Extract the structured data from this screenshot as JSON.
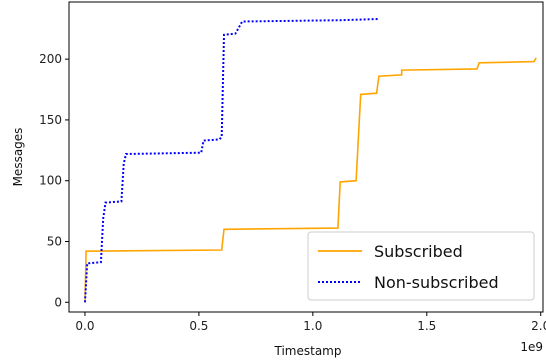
{
  "chart_data": {
    "type": "line",
    "xlabel": "Timestamp",
    "ylabel": "Messages",
    "x_offset_label": "1e9",
    "xlim": [
      -0.07,
      2.01
    ],
    "ylim": [
      -8,
      247
    ],
    "x_ticks": [
      0.0,
      0.5,
      1.0,
      1.5,
      2.0
    ],
    "x_tick_labels": [
      "0.0",
      "0.5",
      "1.0",
      "1.5",
      "2.0"
    ],
    "y_ticks": [
      0,
      50,
      100,
      150,
      200
    ],
    "y_tick_labels": [
      "0",
      "50",
      "100",
      "150",
      "200"
    ],
    "grid": false,
    "legend_position": "lower-right",
    "series": [
      {
        "name": "Subscribed",
        "color": "#ffa500",
        "style": "solid",
        "points": [
          [
            0.0,
            0
          ],
          [
            0.005,
            42
          ],
          [
            0.6,
            43
          ],
          [
            0.61,
            60
          ],
          [
            1.11,
            61
          ],
          [
            1.12,
            99
          ],
          [
            1.19,
            100
          ],
          [
            1.21,
            171
          ],
          [
            1.28,
            172
          ],
          [
            1.29,
            186
          ],
          [
            1.39,
            187
          ],
          [
            1.39,
            191
          ],
          [
            1.72,
            192
          ],
          [
            1.73,
            197
          ],
          [
            1.97,
            198
          ],
          [
            1.98,
            201
          ]
        ]
      },
      {
        "name": "Non-subscribed",
        "color": "#0000ff",
        "style": "dotted",
        "points": [
          [
            0.0,
            0
          ],
          [
            0.01,
            32
          ],
          [
            0.07,
            33
          ],
          [
            0.08,
            69
          ],
          [
            0.09,
            82
          ],
          [
            0.16,
            83
          ],
          [
            0.17,
            114
          ],
          [
            0.18,
            122
          ],
          [
            0.51,
            123
          ],
          [
            0.52,
            133
          ],
          [
            0.59,
            134
          ],
          [
            0.6,
            136
          ],
          [
            0.61,
            220
          ],
          [
            0.66,
            221
          ],
          [
            0.69,
            231
          ],
          [
            1.12,
            232
          ],
          [
            1.29,
            233
          ]
        ]
      }
    ]
  }
}
